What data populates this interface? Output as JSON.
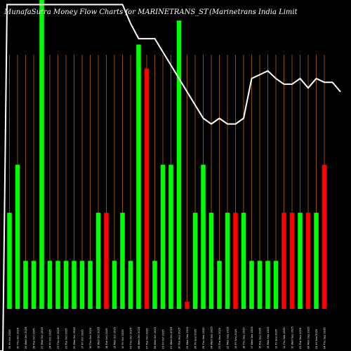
{
  "chart_data": {
    "type": "bar",
    "title": "MunafaSutra  Money Flow  Charts for MARINETRANS_ST",
    "subtitle": "(Marinetrans India  Limit",
    "xlabel": "",
    "ylabel": "",
    "grid": true,
    "colors": {
      "background": "#000000",
      "up": "#00ff00",
      "down": "#ff0000",
      "grid": "#c87000",
      "line": "#ffffff"
    },
    "categories": [
      "31 Fri Oct 2025",
      "30 Thu Oct 2025",
      "29 Wed Oct 2025",
      "28 Tue Oct 2025",
      "27 Mon Oct 2025",
      "24 Fri Oct 2025",
      "23 Thu Oct 2025",
      "21 Tue Oct 2025",
      "20 Mon Oct 2025",
      "17 Fri Oct 2025",
      "16 Thu Oct 2025",
      "15 Wed Oct 2025",
      "14 Tue Oct 2025",
      "13 Mon Oct 2025",
      "10 Fri Oct 2025",
      "09 Thu Oct 2025",
      "08 Wed Oct 2025",
      "07 Tue Oct 2025",
      "06 Mon Oct 2025",
      "03 Fri Oct 2025",
      "01 Wed Oct 2025",
      "30 Tue Sep 2025",
      "29 Mon Sep 2025",
      "26 Fri Sep 2025",
      "25 Thu Sep 2025",
      "24 Wed Sep 2025",
      "23 Tue Sep 2025",
      "22 Mon Sep 2025",
      "19 Fri Sep 2025",
      "18 Thu Sep 2025",
      "17 Wed Sep 2025",
      "16 Tue Sep 2025",
      "15 Mon Sep 2025",
      "12 Fri Sep 2025",
      "11 Thu Sep 2025",
      "10 Wed Sep 2025",
      "09 Tue Sep 2025",
      "08 Mon Sep 2025",
      "05 Fri Sep 2025",
      "04 Thu Sep 2025"
    ],
    "bars": [
      {
        "value": 40,
        "color": "green"
      },
      {
        "value": 60,
        "color": "green"
      },
      {
        "value": 20,
        "color": "green"
      },
      {
        "value": 20,
        "color": "green"
      },
      {
        "value": 130,
        "color": "green"
      },
      {
        "value": 20,
        "color": "green"
      },
      {
        "value": 20,
        "color": "green"
      },
      {
        "value": 20,
        "color": "green"
      },
      {
        "value": 20,
        "color": "green"
      },
      {
        "value": 20,
        "color": "green"
      },
      {
        "value": 20,
        "color": "green"
      },
      {
        "value": 40,
        "color": "green"
      },
      {
        "value": 40,
        "color": "red"
      },
      {
        "value": 20,
        "color": "green"
      },
      {
        "value": 40,
        "color": "green"
      },
      {
        "value": 20,
        "color": "green"
      },
      {
        "value": 110,
        "color": "green"
      },
      {
        "value": 100,
        "color": "red"
      },
      {
        "value": 20,
        "color": "green"
      },
      {
        "value": 60,
        "color": "green"
      },
      {
        "value": 60,
        "color": "green"
      },
      {
        "value": 120,
        "color": "green"
      },
      {
        "value": 3,
        "color": "red"
      },
      {
        "value": 40,
        "color": "green"
      },
      {
        "value": 60,
        "color": "green"
      },
      {
        "value": 40,
        "color": "green"
      },
      {
        "value": 20,
        "color": "green"
      },
      {
        "value": 40,
        "color": "green"
      },
      {
        "value": 40,
        "color": "red"
      },
      {
        "value": 40,
        "color": "green"
      },
      {
        "value": 20,
        "color": "green"
      },
      {
        "value": 20,
        "color": "green"
      },
      {
        "value": 20,
        "color": "green"
      },
      {
        "value": 20,
        "color": "green"
      },
      {
        "value": 40,
        "color": "red"
      },
      {
        "value": 40,
        "color": "red"
      },
      {
        "value": 40,
        "color": "green"
      },
      {
        "value": 40,
        "color": "red"
      },
      {
        "value": 40,
        "color": "green"
      },
      {
        "value": 60,
        "color": "red"
      }
    ],
    "ylim": [
      0,
      130
    ],
    "line": {
      "name": "",
      "ylim": [
        0,
        100
      ],
      "values": [
        105,
        105,
        105,
        105,
        105,
        105,
        105,
        105,
        105,
        105,
        105,
        105,
        105,
        95,
        87,
        87,
        87,
        80,
        73,
        66,
        59,
        52,
        45,
        42,
        45,
        42,
        42,
        45,
        66,
        68,
        70,
        66,
        63,
        63,
        66,
        61,
        66,
        64,
        64,
        59
      ],
      "points_before_first_category": 2
    }
  }
}
